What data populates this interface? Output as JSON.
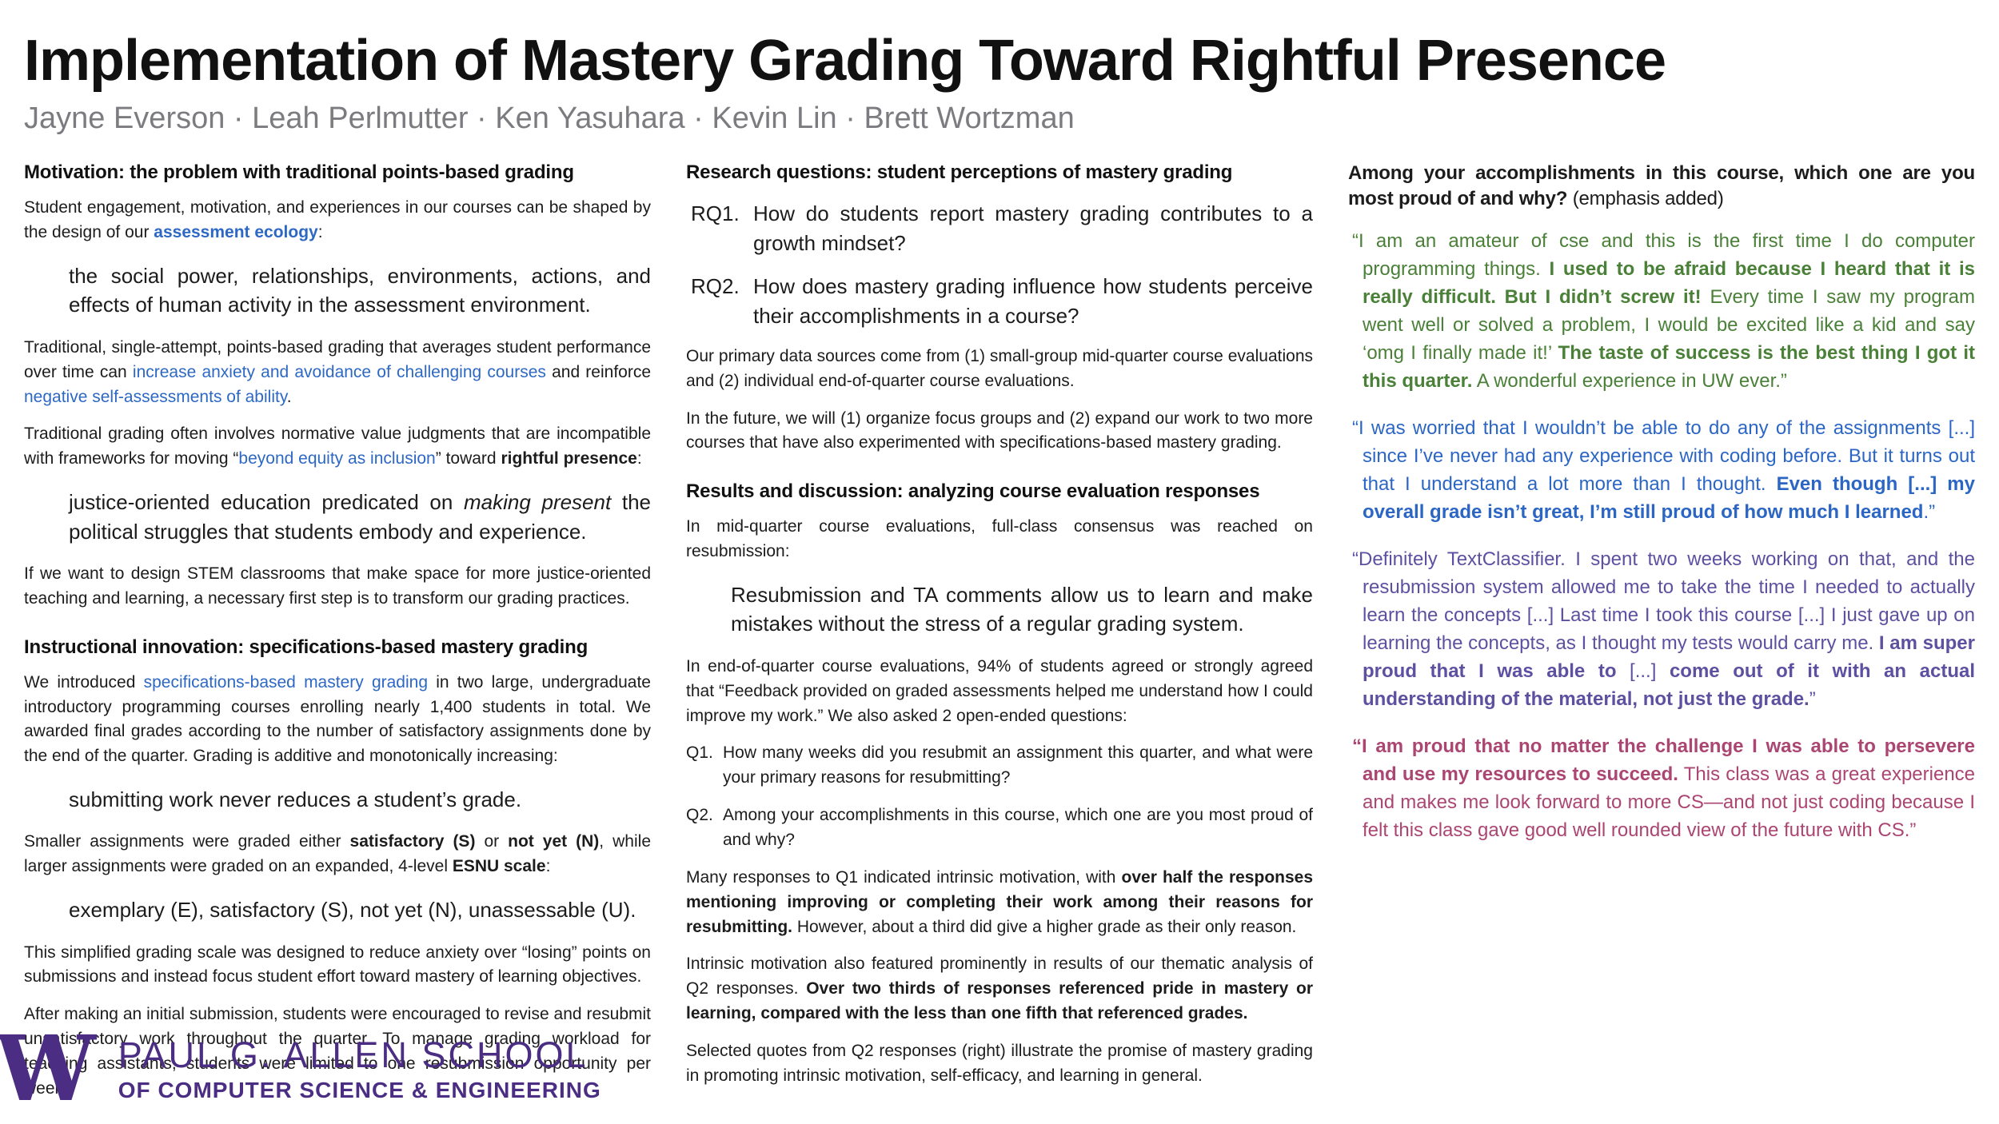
{
  "poster": {
    "title": "Implementation of Mastery Grading Toward Rightful Presence",
    "authors": "Jayne Everson · Leah Perlmutter · Ken Yasuhara · Kevin Lin · Brett Wortzman"
  },
  "colors": {
    "link_blue": "#2d68c4",
    "quote_green": "#4a8038",
    "quote_blue": "#2c66c4",
    "quote_purple": "#5d50a1",
    "quote_maroon": "#ab4572",
    "uw_purple": "#4b2e83",
    "authors_gray": "#7c7c80"
  },
  "left": {
    "heading1": "Motivation: the problem with traditional points-based grading",
    "p1": [
      {
        "t": "Student engagement, motivation, and experiences in our courses can be shaped by the design of our "
      },
      {
        "t": "assessment ecology",
        "b": true,
        "c": "link"
      },
      {
        "t": ":"
      }
    ],
    "bq1": "the social power, relationships, environments, actions, and effects of human activity in the assessment environment.",
    "p2": [
      {
        "t": "Traditional, single-attempt, points-based grading that averages student performance over time can "
      },
      {
        "t": "increase anxiety and avoidance of challenging courses",
        "c": "link"
      },
      {
        "t": " and reinforce "
      },
      {
        "t": "negative self-assessments of ability",
        "c": "link"
      },
      {
        "t": "."
      }
    ],
    "p3": [
      {
        "t": "Traditional grading often involves normative value judgments that are incompatible with frameworks for moving “"
      },
      {
        "t": "beyond equity as inclusion",
        "c": "link"
      },
      {
        "t": "” toward "
      },
      {
        "t": "rightful presence",
        "b": true
      },
      {
        "t": ":"
      }
    ],
    "bq2": [
      {
        "t": "justice-oriented education predicated on "
      },
      {
        "t": "making present",
        "i": true
      },
      {
        "t": " the political struggles that students embody and experience."
      }
    ],
    "p4": "If we want to design STEM classrooms that make space for more justice-oriented teaching and learning, a necessary first step is to transform our grading practices.",
    "heading2": "Instructional innovation: specifications-based mastery grading",
    "p5": [
      {
        "t": "We introduced "
      },
      {
        "t": "specifications-based mastery grading",
        "c": "link"
      },
      {
        "t": " in two large, undergraduate introductory programming courses enrolling nearly 1,400 students in total. We awarded final grades according to the number of satisfactory assignments done by the end of the quarter. Grading is additive and monotonically increasing:"
      }
    ],
    "bq3": "submitting work never reduces a student’s grade.",
    "p6": [
      {
        "t": "Smaller assignments were graded either "
      },
      {
        "t": "satisfactory (S)",
        "b": true
      },
      {
        "t": " or "
      },
      {
        "t": "not yet (N)",
        "b": true
      },
      {
        "t": ", while larger assignments were graded on an expanded, 4-level "
      },
      {
        "t": "ESNU scale",
        "b": true
      },
      {
        "t": ":"
      }
    ],
    "bq4": "exemplary (E), satisfactory (S), not yet (N), unassessable (U).",
    "p7": "This simplified grading scale was designed to reduce anxiety over “losing” points on submissions and instead focus student effort toward mastery of learning objectives.",
    "p8": "After making an initial submission, students were encouraged to revise and resubmit unsatisfactory work throughout the quarter. To manage grading workload for teaching assistants, students were limited to one resubmission opportunity per week."
  },
  "middle": {
    "heading1": "Research questions: student perceptions of mastery grading",
    "rq": [
      {
        "label": "RQ1.",
        "text": "How do students report mastery grading contributes to a growth mindset?"
      },
      {
        "label": "RQ2.",
        "text": "How does mastery grading influence how students perceive their accomplishments in a course?"
      }
    ],
    "p1": "Our primary data sources come from (1) small-group mid-quarter course evaluations and (2) individual end-of-quarter course evaluations.",
    "p2": "In the future, we will (1) organize focus groups and (2) expand our work to two more courses that have also experimented with specifications-based mastery grading.",
    "heading2": "Results and discussion: analyzing course evaluation responses",
    "p3": "In mid-quarter course evaluations, full-class consensus was reached on resubmission:",
    "bq1": "Resubmission and TA comments allow us to learn and make mistakes without the stress of a regular grading system.",
    "p4": "In end-of-quarter course evaluations, 94% of students agreed or strongly agreed that “Feedback provided on graded assessments helped me understand how I could improve my work.” We also asked 2 open-ended questions:",
    "q": [
      {
        "label": "Q1.",
        "text": "How many weeks did you resubmit an assignment this quarter, and what were your primary reasons for resubmitting?"
      },
      {
        "label": "Q2.",
        "text": "Among your accomplishments in this course, which one are you most proud of and why?"
      }
    ],
    "p5": [
      {
        "t": "Many responses to Q1 indicated intrinsic motivation, with "
      },
      {
        "t": "over half the responses mentioning improving or completing their work among their reasons for resubmitting.",
        "b": true
      },
      {
        "t": " However, about a third did give a higher grade as their only reason."
      }
    ],
    "p6": [
      {
        "t": "Intrinsic motivation also featured prominently in results of our thematic analysis of Q2 responses. "
      },
      {
        "t": "Over two thirds of responses referenced pride in mastery or learning, compared with the less than one fifth that referenced grades.",
        "b": true
      }
    ],
    "p7": "Selected quotes from Q2 responses (right) illustrate the promise of mastery grading in promoting intrinsic motivation, self-efficacy, and learning in general."
  },
  "right": {
    "heading": [
      {
        "t": "Among your accomplishments in this course, which one are you most proud of and why?",
        "b": true
      },
      {
        "t": " (emphasis added)"
      }
    ],
    "quotes": [
      {
        "color": "green",
        "segments": [
          {
            "t": "“I am an amateur of cse and this is the first time I do computer programming things. "
          },
          {
            "t": "I used to be afraid because I heard that it is really difficult. But I didn’t screw it!",
            "b": true
          },
          {
            "t": " Every time I saw my program went well or solved a problem, I would be excited like a kid and say ‘omg I finally made it!’ "
          },
          {
            "t": "The taste of success is the best thing I got it this quarter.",
            "b": true
          },
          {
            "t": " A wonderful experience in UW ever.”"
          }
        ]
      },
      {
        "color": "blue",
        "segments": [
          {
            "t": "“I was worried that I wouldn’t be able to do any of the assignments [...] since I’ve never had any experience with coding before. But it turns out that I understand a lot more than I thought. "
          },
          {
            "t": "Even though [...] my overall grade isn’t great, I’m still proud of how much I learned",
            "b": true
          },
          {
            "t": ".”"
          }
        ]
      },
      {
        "color": "purple",
        "segments": [
          {
            "t": "“Definitely TextClassifier. I spent two weeks working on that, and the resubmission system allowed me to take the time I needed to actually learn the concepts [...] Last time I took this course [...] I just gave up on learning the concepts, as I thought my tests would carry me. "
          },
          {
            "t": "I am super proud that I was able to",
            "b": true
          },
          {
            "t": " [...] "
          },
          {
            "t": "come out of it with an actual understanding of the material, not just the grade.",
            "b": true
          },
          {
            "t": "”"
          }
        ]
      },
      {
        "color": "maroon",
        "segments": [
          {
            "t": "“I am proud that no matter the challenge I was able to persevere and use my resources to succeed.",
            "b": true
          },
          {
            "t": " This class was a great experience and makes me look forward to more CS—and not just coding because I felt this class gave good well rounded view of the future with CS.”"
          }
        ]
      }
    ]
  },
  "footer": {
    "logo_letter": "W",
    "school_line1": "PAUL G. ALLEN SCHOOL",
    "school_line2": "OF COMPUTER SCIENCE & ENGINEERING"
  }
}
